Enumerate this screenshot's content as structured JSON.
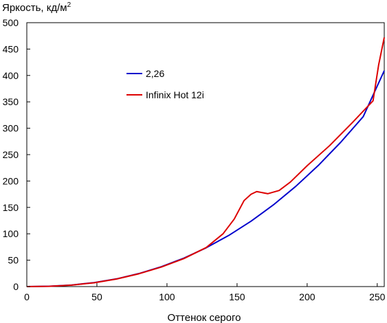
{
  "chart_data": {
    "type": "line",
    "xlabel": "Оттенок серого",
    "ylabel": "Яркость, кд/м",
    "ylabel_sup": "2",
    "xlim": [
      0,
      255
    ],
    "ylim": [
      0,
      500
    ],
    "x_ticks": [
      0,
      50,
      100,
      150,
      200,
      250
    ],
    "y_ticks": [
      0,
      50,
      100,
      150,
      200,
      250,
      300,
      350,
      400,
      450,
      500
    ],
    "grid": false,
    "legend_position": "upper-left-inside",
    "series": [
      {
        "name": "2,26",
        "color": "#0000cc",
        "x": [
          0,
          16,
          32,
          48,
          64,
          80,
          96,
          112,
          128,
          144,
          160,
          176,
          192,
          208,
          224,
          240,
          255
        ],
        "y": [
          0,
          0.6,
          3.0,
          7.5,
          14.6,
          24.7,
          37.7,
          53.8,
          73.5,
          96.8,
          123.9,
          155.0,
          190.2,
          229.6,
          273.6,
          322.0,
          409.0
        ]
      },
      {
        "name": "Infinix Hot 12i",
        "color": "#dd0000",
        "x": [
          0,
          16,
          32,
          48,
          64,
          80,
          96,
          112,
          128,
          140,
          148,
          155,
          160,
          164,
          172,
          180,
          188,
          200,
          216,
          232,
          247,
          251,
          255
        ],
        "y": [
          0,
          0.5,
          2.8,
          7.2,
          14.3,
          24.3,
          37.0,
          53.0,
          74.0,
          100.0,
          128.0,
          163.0,
          175.0,
          180.0,
          176.0,
          182.0,
          198.0,
          229.0,
          267.0,
          310.0,
          352.0,
          420.0,
          472.0
        ]
      }
    ]
  }
}
